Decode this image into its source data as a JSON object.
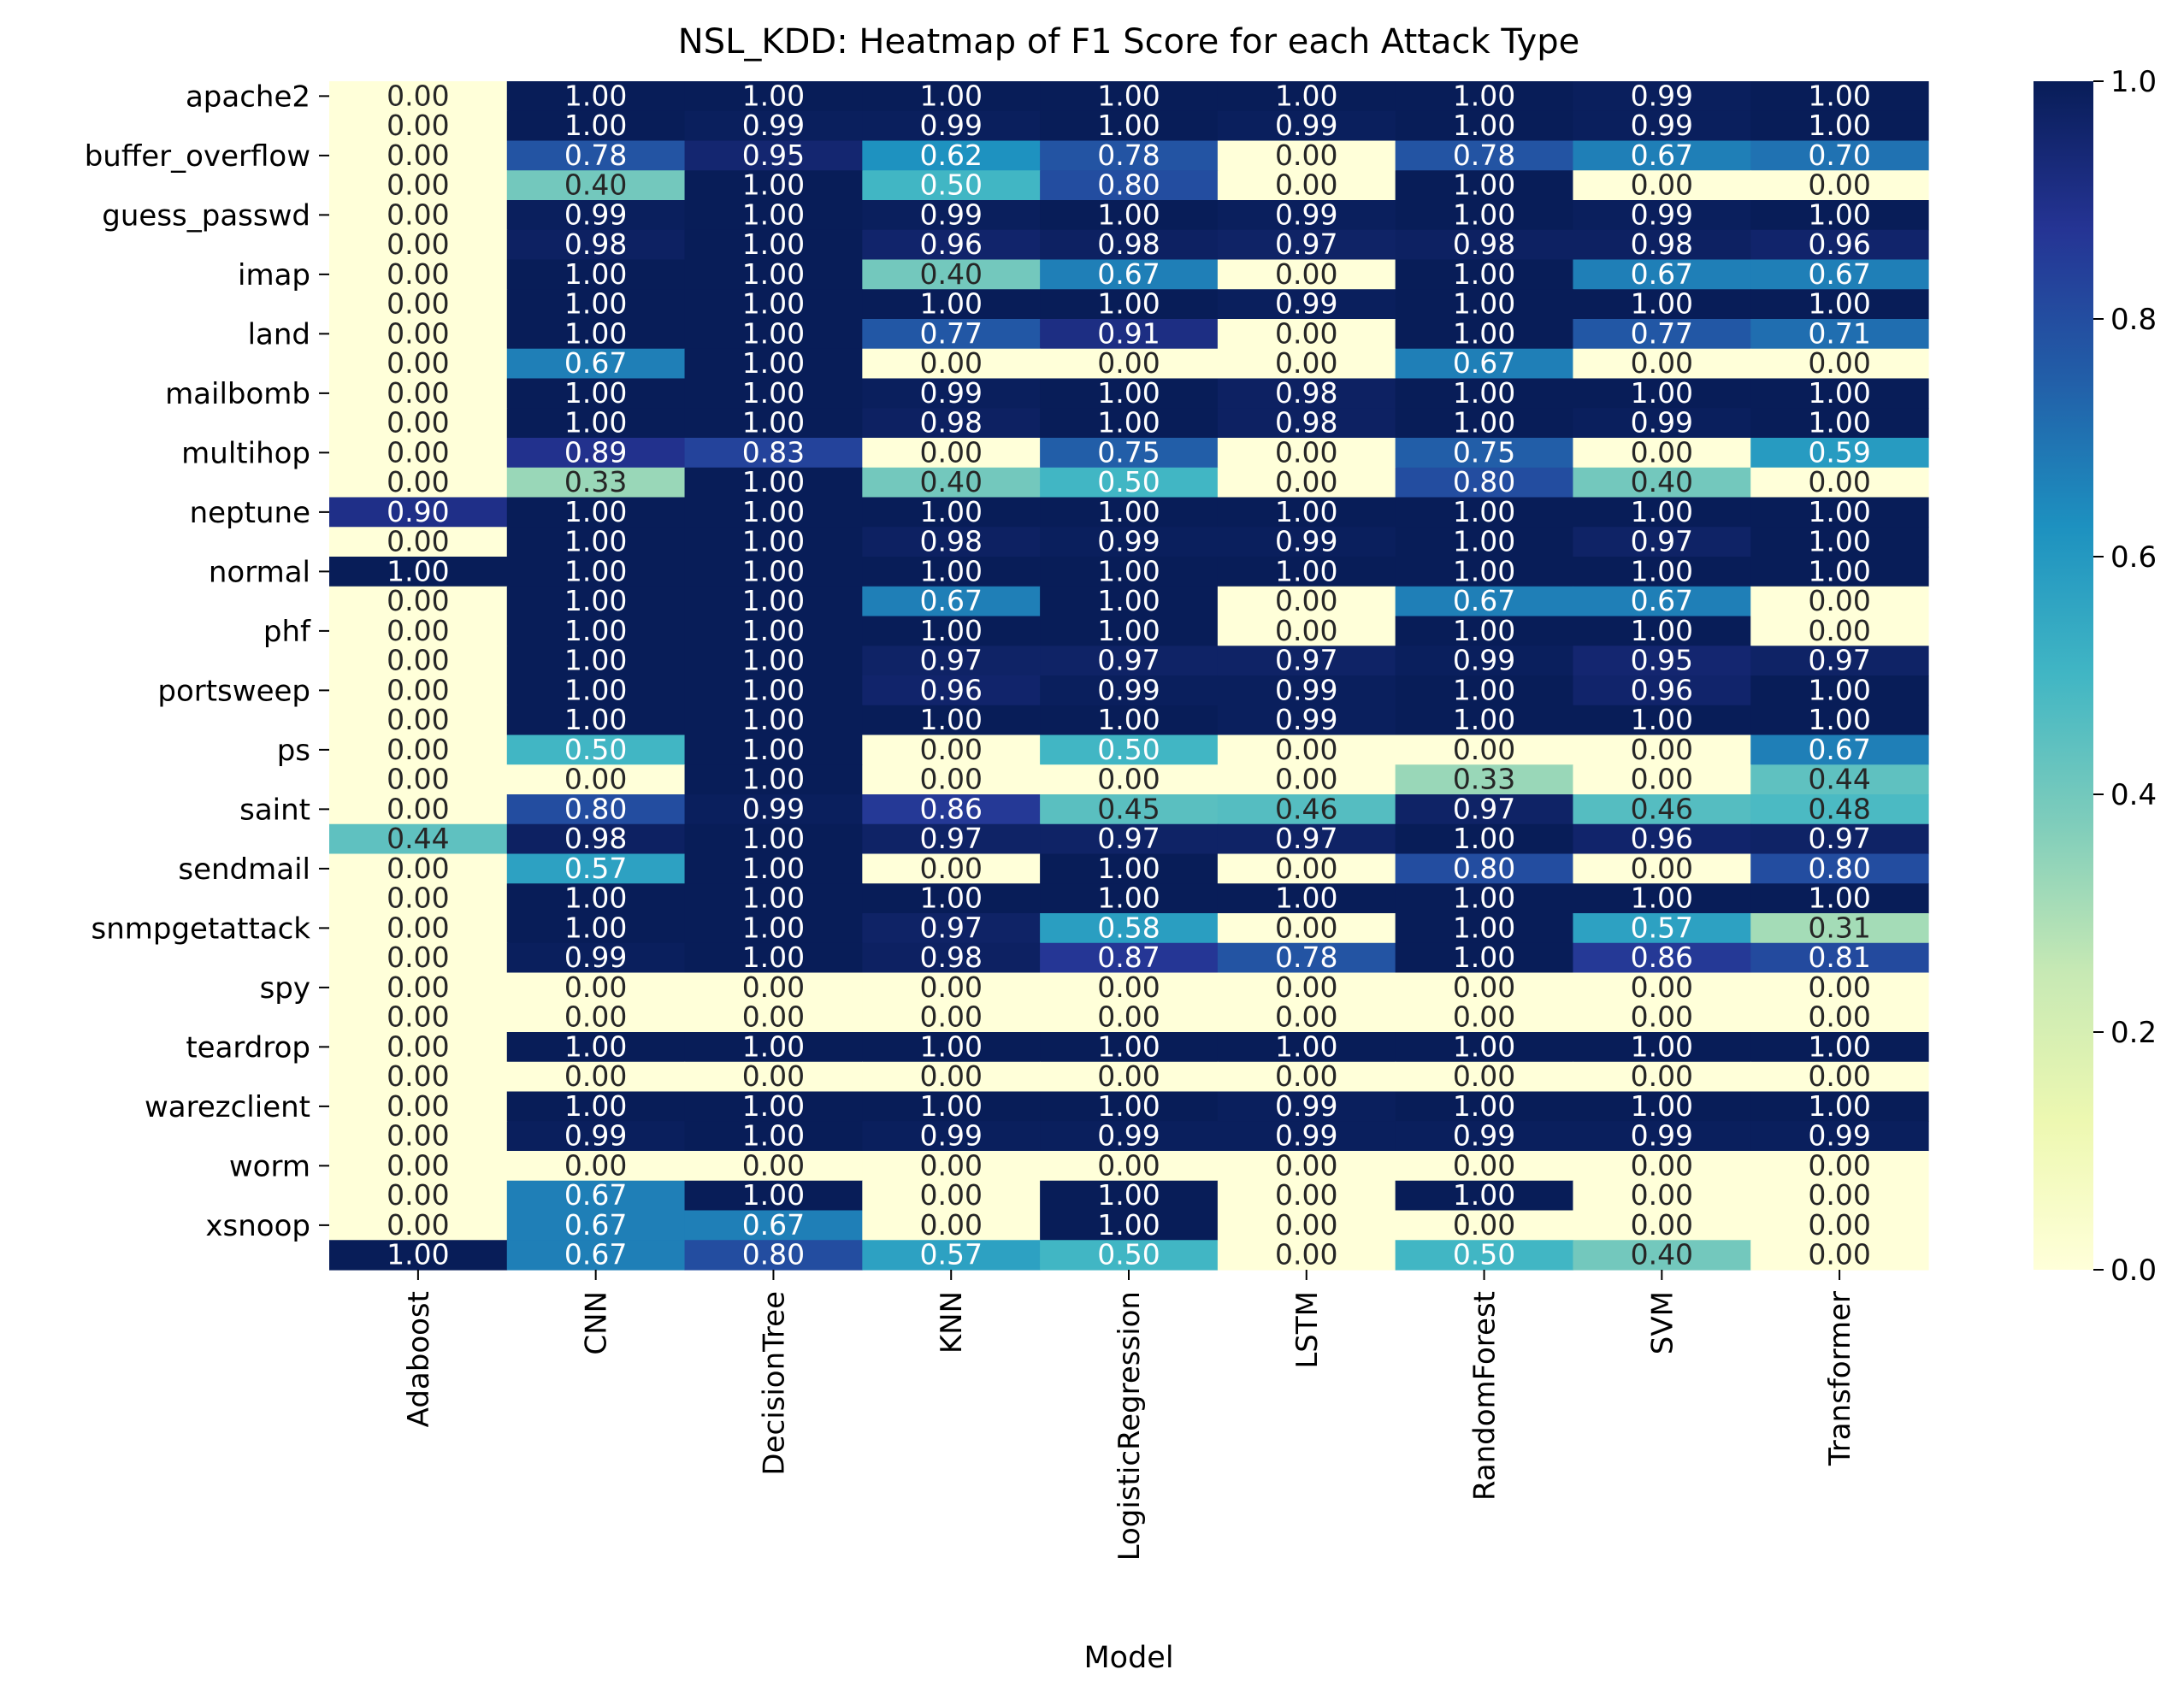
{
  "chart_data": {
    "type": "heatmap",
    "title": "NSL_KDD: Heatmap of F1 Score for each Attack Type",
    "xlabel": "Model",
    "ylabel": "",
    "models": [
      "Adaboost",
      "CNN",
      "DecisionTree",
      "KNN",
      "LogisticRegression",
      "LSTM",
      "RandomForest",
      "SVM",
      "Transformer"
    ],
    "row_tick_labels": [
      "apache2",
      "",
      "buffer_overflow",
      "",
      "guess_passwd",
      "",
      "imap",
      "",
      "land",
      "",
      "mailbomb",
      "",
      "multihop",
      "",
      "neptune",
      "",
      "normal",
      "",
      "phf",
      "",
      "portsweep",
      "",
      "ps",
      "",
      "saint",
      "",
      "sendmail",
      "",
      "snmpgetattack",
      "",
      "spy",
      "",
      "teardrop",
      "",
      "warezclient",
      "",
      "worm",
      "",
      "xsnoop",
      "",
      ""
    ],
    "values": [
      [
        0.0,
        1.0,
        1.0,
        1.0,
        1.0,
        1.0,
        1.0,
        0.99,
        1.0
      ],
      [
        0.0,
        1.0,
        0.99,
        0.99,
        1.0,
        0.99,
        1.0,
        0.99,
        1.0
      ],
      [
        0.0,
        0.78,
        0.95,
        0.62,
        0.78,
        0.0,
        0.78,
        0.67,
        0.7
      ],
      [
        0.0,
        0.4,
        1.0,
        0.5,
        0.8,
        0.0,
        1.0,
        0.0,
        0.0
      ],
      [
        0.0,
        0.99,
        1.0,
        0.99,
        1.0,
        0.99,
        1.0,
        0.99,
        1.0
      ],
      [
        0.0,
        0.98,
        1.0,
        0.96,
        0.98,
        0.97,
        0.98,
        0.98,
        0.96
      ],
      [
        0.0,
        1.0,
        1.0,
        0.4,
        0.67,
        0.0,
        1.0,
        0.67,
        0.67
      ],
      [
        0.0,
        1.0,
        1.0,
        1.0,
        1.0,
        0.99,
        1.0,
        1.0,
        1.0
      ],
      [
        0.0,
        1.0,
        1.0,
        0.77,
        0.91,
        0.0,
        1.0,
        0.77,
        0.71
      ],
      [
        0.0,
        0.67,
        1.0,
        0.0,
        0.0,
        0.0,
        0.67,
        0.0,
        0.0
      ],
      [
        0.0,
        1.0,
        1.0,
        0.99,
        1.0,
        0.98,
        1.0,
        1.0,
        1.0
      ],
      [
        0.0,
        1.0,
        1.0,
        0.98,
        1.0,
        0.98,
        1.0,
        0.99,
        1.0
      ],
      [
        0.0,
        0.89,
        0.83,
        0.0,
        0.75,
        0.0,
        0.75,
        0.0,
        0.59
      ],
      [
        0.0,
        0.33,
        1.0,
        0.4,
        0.5,
        0.0,
        0.8,
        0.4,
        0.0
      ],
      [
        0.9,
        1.0,
        1.0,
        1.0,
        1.0,
        1.0,
        1.0,
        1.0,
        1.0
      ],
      [
        0.0,
        1.0,
        1.0,
        0.98,
        0.99,
        0.99,
        1.0,
        0.97,
        1.0
      ],
      [
        1.0,
        1.0,
        1.0,
        1.0,
        1.0,
        1.0,
        1.0,
        1.0,
        1.0
      ],
      [
        0.0,
        1.0,
        1.0,
        0.67,
        1.0,
        0.0,
        0.67,
        0.67,
        0.0
      ],
      [
        0.0,
        1.0,
        1.0,
        1.0,
        1.0,
        0.0,
        1.0,
        1.0,
        0.0
      ],
      [
        0.0,
        1.0,
        1.0,
        0.97,
        0.97,
        0.97,
        0.99,
        0.95,
        0.97
      ],
      [
        0.0,
        1.0,
        1.0,
        0.96,
        0.99,
        0.99,
        1.0,
        0.96,
        1.0
      ],
      [
        0.0,
        1.0,
        1.0,
        1.0,
        1.0,
        0.99,
        1.0,
        1.0,
        1.0
      ],
      [
        0.0,
        0.5,
        1.0,
        0.0,
        0.5,
        0.0,
        0.0,
        0.0,
        0.67
      ],
      [
        0.0,
        0.0,
        1.0,
        0.0,
        0.0,
        0.0,
        0.33,
        0.0,
        0.44
      ],
      [
        0.0,
        0.8,
        0.99,
        0.86,
        0.45,
        0.46,
        0.97,
        0.46,
        0.48
      ],
      [
        0.44,
        0.98,
        1.0,
        0.97,
        0.97,
        0.97,
        1.0,
        0.96,
        0.97
      ],
      [
        0.0,
        0.57,
        1.0,
        0.0,
        1.0,
        0.0,
        0.8,
        0.0,
        0.8
      ],
      [
        0.0,
        1.0,
        1.0,
        1.0,
        1.0,
        1.0,
        1.0,
        1.0,
        1.0
      ],
      [
        0.0,
        1.0,
        1.0,
        0.97,
        0.58,
        0.0,
        1.0,
        0.57,
        0.31
      ],
      [
        0.0,
        0.99,
        1.0,
        0.98,
        0.87,
        0.78,
        1.0,
        0.86,
        0.81
      ],
      [
        0.0,
        0.0,
        0.0,
        0.0,
        0.0,
        0.0,
        0.0,
        0.0,
        0.0
      ],
      [
        0.0,
        0.0,
        0.0,
        0.0,
        0.0,
        0.0,
        0.0,
        0.0,
        0.0
      ],
      [
        0.0,
        1.0,
        1.0,
        1.0,
        1.0,
        1.0,
        1.0,
        1.0,
        1.0
      ],
      [
        0.0,
        0.0,
        0.0,
        0.0,
        0.0,
        0.0,
        0.0,
        0.0,
        0.0
      ],
      [
        0.0,
        1.0,
        1.0,
        1.0,
        1.0,
        0.99,
        1.0,
        1.0,
        1.0
      ],
      [
        0.0,
        0.99,
        1.0,
        0.99,
        0.99,
        0.99,
        0.99,
        0.99,
        0.99
      ],
      [
        0.0,
        0.0,
        0.0,
        0.0,
        0.0,
        0.0,
        0.0,
        0.0,
        0.0
      ],
      [
        0.0,
        0.67,
        1.0,
        0.0,
        1.0,
        0.0,
        1.0,
        0.0,
        0.0
      ],
      [
        0.0,
        0.67,
        0.67,
        0.0,
        1.0,
        0.0,
        0.0,
        0.0,
        0.0
      ],
      [
        1.0,
        0.67,
        0.8,
        0.57,
        0.5,
        0.0,
        0.5,
        0.4,
        0.0
      ]
    ],
    "colorbar": {
      "colormap": "YlGnBu",
      "range": [
        0.0,
        1.0
      ],
      "ticks": [
        "0.0",
        "0.2",
        "0.4",
        "0.6",
        "0.8",
        "1.0"
      ]
    },
    "value_format": "2 decimals",
    "grid": false
  }
}
